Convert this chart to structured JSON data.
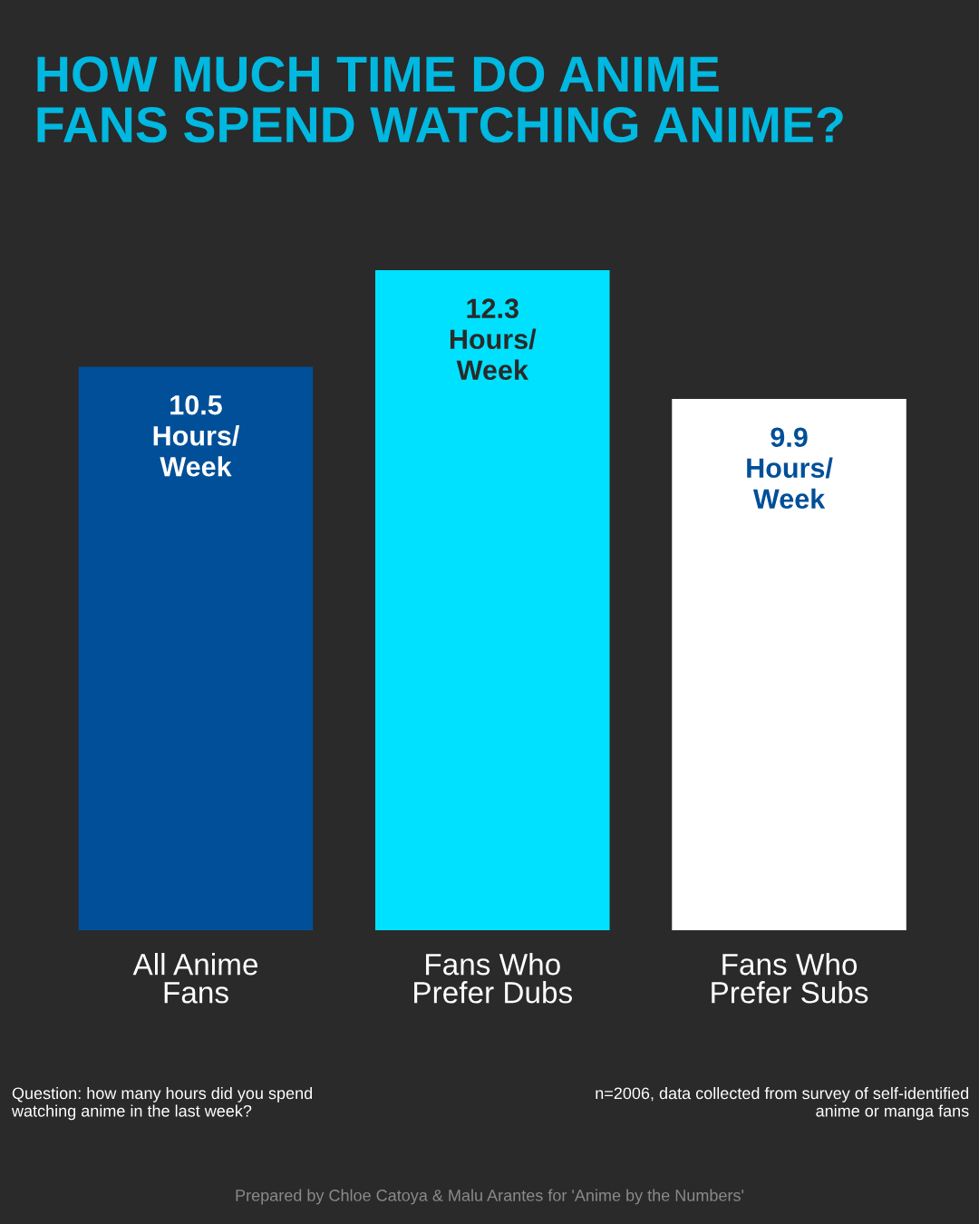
{
  "chart_data": {
    "type": "bar",
    "title": "HOW MUCH TIME DO ANIME\nFANS SPEND WATCHING ANIME?",
    "categories": [
      "All Anime\nFans",
      "Fans Who\nPrefer Dubs",
      "Fans Who\nPrefer Subs"
    ],
    "values": [
      10.5,
      12.3,
      9.9
    ],
    "colors": [
      "#004f98",
      "#00e1ff",
      "#ffffff"
    ],
    "value_labels": [
      "10.5\nHours/\nWeek",
      "12.3\nHours/\nWeek",
      "9.9\nHours/\nWeek"
    ],
    "grid": false,
    "legend": false,
    "tick_labels": "x",
    "annotations": [
      "Question: how many hours did you spend\nwatching anime in the last week?",
      "n=2006, data collected from survey of self-identified\nanime or manga fans",
      "Prepared by Chloe Catoya & Malu Arantes for 'Anime by the Numbers'"
    ]
  }
}
